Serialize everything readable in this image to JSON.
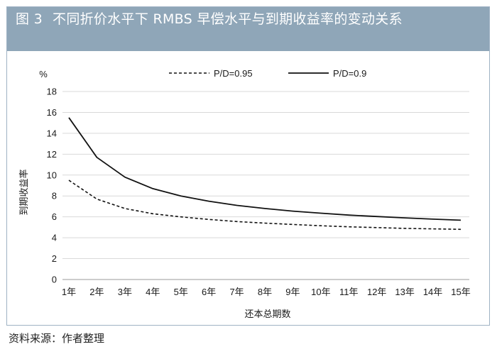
{
  "figure": {
    "number": "图 3",
    "title": "不同折价水平下 RMBS 早偿水平与到期收益率的变动关系"
  },
  "source_note": "资料来源：作者整理",
  "chart_data": {
    "type": "line",
    "title": "不同折价水平下 RMBS 早偿水平与到期收益率的变动关系",
    "unit_label": "%",
    "xlabel": "还本总期数",
    "ylabel": "到期收益率",
    "categories": [
      "1年",
      "2年",
      "3年",
      "4年",
      "5年",
      "6年",
      "7年",
      "8年",
      "9年",
      "10年",
      "11年",
      "12年",
      "13年",
      "14年",
      "15年"
    ],
    "ylim": [
      0,
      18
    ],
    "yticks": [
      0,
      2,
      4,
      6,
      8,
      10,
      12,
      14,
      16,
      18
    ],
    "grid": "horizontal",
    "legend_position": "top",
    "series": [
      {
        "name": "P/D=0.95",
        "style": "dashed",
        "color": "#111111",
        "values": [
          9.5,
          7.7,
          6.8,
          6.3,
          6.0,
          5.75,
          5.55,
          5.4,
          5.27,
          5.15,
          5.05,
          4.97,
          4.9,
          4.85,
          4.8
        ]
      },
      {
        "name": "P/D=0.9",
        "style": "solid",
        "color": "#111111",
        "values": [
          15.5,
          11.7,
          9.8,
          8.7,
          8.0,
          7.5,
          7.1,
          6.8,
          6.55,
          6.35,
          6.17,
          6.03,
          5.9,
          5.78,
          5.68
        ]
      }
    ]
  }
}
